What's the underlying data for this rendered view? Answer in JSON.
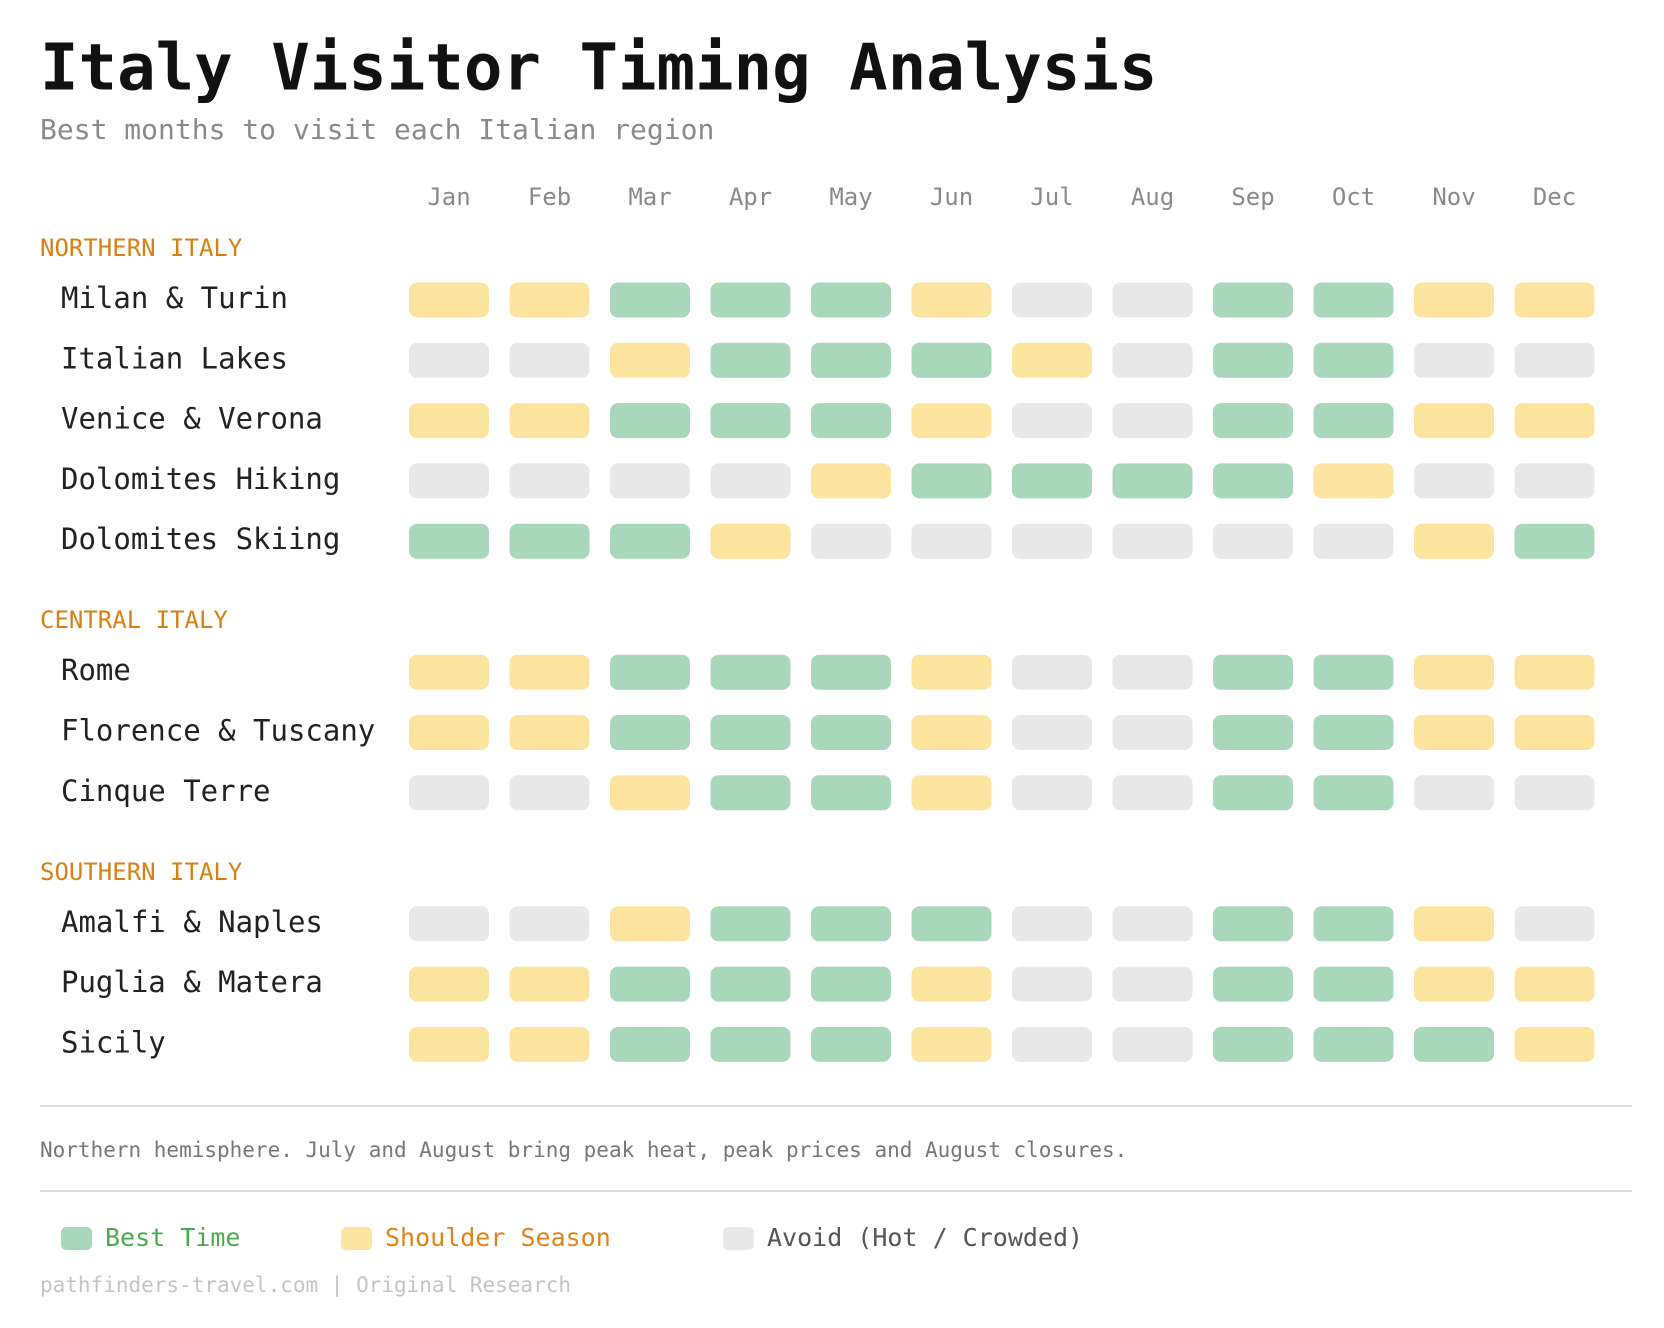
{
  "chart_data": {
    "type": "heatmap",
    "title": "Italy Visitor Timing Analysis",
    "subtitle": "Best months to visit each Italian region",
    "categories": [
      "Jan",
      "Feb",
      "Mar",
      "Apr",
      "May",
      "Jun",
      "Jul",
      "Aug",
      "Sep",
      "Oct",
      "Nov",
      "Dec"
    ],
    "legend": [
      {
        "label": "Best Time",
        "color": "#a8d8b9",
        "text_color": "#4caa4c"
      },
      {
        "label": "Shoulder Season",
        "color": "#fde49e",
        "text_color": "#e0841a"
      },
      {
        "label": "Avoid (Hot / Crowded)",
        "color": "#e8e8e8",
        "text_color": "#555555"
      }
    ],
    "groups": [
      {
        "name": "NORTHERN ITALY",
        "rows": [
          {
            "name": "Milan & Turin",
            "values": [
              "Shoulder Season",
              "Shoulder Season",
              "Best Time",
              "Best Time",
              "Best Time",
              "Shoulder Season",
              "Avoid (Hot / Crowded)",
              "Avoid (Hot / Crowded)",
              "Best Time",
              "Best Time",
              "Shoulder Season",
              "Shoulder Season"
            ]
          },
          {
            "name": "Italian Lakes",
            "values": [
              "Avoid (Hot / Crowded)",
              "Avoid (Hot / Crowded)",
              "Shoulder Season",
              "Best Time",
              "Best Time",
              "Best Time",
              "Shoulder Season",
              "Avoid (Hot / Crowded)",
              "Best Time",
              "Best Time",
              "Avoid (Hot / Crowded)",
              "Avoid (Hot / Crowded)"
            ]
          },
          {
            "name": "Venice & Verona",
            "values": [
              "Shoulder Season",
              "Shoulder Season",
              "Best Time",
              "Best Time",
              "Best Time",
              "Shoulder Season",
              "Avoid (Hot / Crowded)",
              "Avoid (Hot / Crowded)",
              "Best Time",
              "Best Time",
              "Shoulder Season",
              "Shoulder Season"
            ]
          },
          {
            "name": "Dolomites Hiking",
            "values": [
              "Avoid (Hot / Crowded)",
              "Avoid (Hot / Crowded)",
              "Avoid (Hot / Crowded)",
              "Avoid (Hot / Crowded)",
              "Shoulder Season",
              "Best Time",
              "Best Time",
              "Best Time",
              "Best Time",
              "Shoulder Season",
              "Avoid (Hot / Crowded)",
              "Avoid (Hot / Crowded)"
            ]
          },
          {
            "name": "Dolomites Skiing",
            "values": [
              "Best Time",
              "Best Time",
              "Best Time",
              "Shoulder Season",
              "Avoid (Hot / Crowded)",
              "Avoid (Hot / Crowded)",
              "Avoid (Hot / Crowded)",
              "Avoid (Hot / Crowded)",
              "Avoid (Hot / Crowded)",
              "Avoid (Hot / Crowded)",
              "Shoulder Season",
              "Best Time"
            ]
          }
        ]
      },
      {
        "name": "CENTRAL ITALY",
        "rows": [
          {
            "name": "Rome",
            "values": [
              "Shoulder Season",
              "Shoulder Season",
              "Best Time",
              "Best Time",
              "Best Time",
              "Shoulder Season",
              "Avoid (Hot / Crowded)",
              "Avoid (Hot / Crowded)",
              "Best Time",
              "Best Time",
              "Shoulder Season",
              "Shoulder Season"
            ]
          },
          {
            "name": "Florence & Tuscany",
            "values": [
              "Shoulder Season",
              "Shoulder Season",
              "Best Time",
              "Best Time",
              "Best Time",
              "Shoulder Season",
              "Avoid (Hot / Crowded)",
              "Avoid (Hot / Crowded)",
              "Best Time",
              "Best Time",
              "Shoulder Season",
              "Shoulder Season"
            ]
          },
          {
            "name": "Cinque Terre",
            "values": [
              "Avoid (Hot / Crowded)",
              "Avoid (Hot / Crowded)",
              "Shoulder Season",
              "Best Time",
              "Best Time",
              "Shoulder Season",
              "Avoid (Hot / Crowded)",
              "Avoid (Hot / Crowded)",
              "Best Time",
              "Best Time",
              "Avoid (Hot / Crowded)",
              "Avoid (Hot / Crowded)"
            ]
          }
        ]
      },
      {
        "name": "SOUTHERN ITALY",
        "rows": [
          {
            "name": "Amalfi & Naples",
            "values": [
              "Avoid (Hot / Crowded)",
              "Avoid (Hot / Crowded)",
              "Shoulder Season",
              "Best Time",
              "Best Time",
              "Best Time",
              "Avoid (Hot / Crowded)",
              "Avoid (Hot / Crowded)",
              "Best Time",
              "Best Time",
              "Shoulder Season",
              "Avoid (Hot / Crowded)"
            ]
          },
          {
            "name": "Puglia & Matera",
            "values": [
              "Shoulder Season",
              "Shoulder Season",
              "Best Time",
              "Best Time",
              "Best Time",
              "Shoulder Season",
              "Avoid (Hot / Crowded)",
              "Avoid (Hot / Crowded)",
              "Best Time",
              "Best Time",
              "Shoulder Season",
              "Shoulder Season"
            ]
          },
          {
            "name": "Sicily",
            "values": [
              "Shoulder Season",
              "Shoulder Season",
              "Best Time",
              "Best Time",
              "Best Time",
              "Shoulder Season",
              "Avoid (Hot / Crowded)",
              "Avoid (Hot / Crowded)",
              "Best Time",
              "Best Time",
              "Best Time",
              "Shoulder Season"
            ]
          }
        ]
      }
    ],
    "footnote": "Northern hemisphere. July and August bring peak heat, peak prices and August closures.",
    "source": "pathfinders-travel.com | Original Research"
  }
}
